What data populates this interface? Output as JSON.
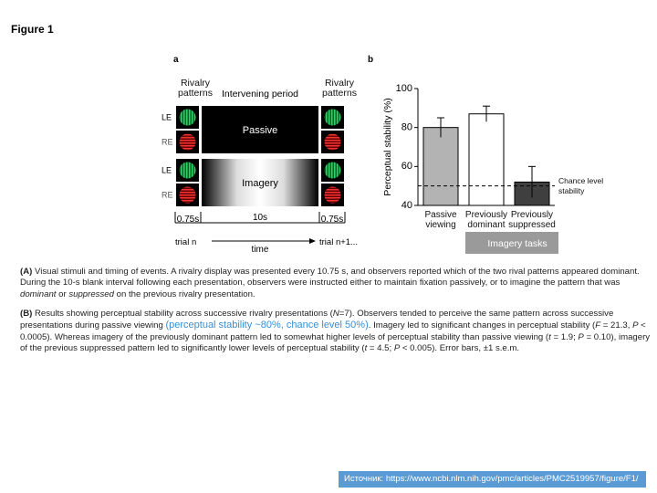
{
  "figure_label": "Figure 1",
  "panel_a": {
    "label": "a",
    "rivalry_left": "Rivalry patterns",
    "intervening": "Intervening period",
    "rivalry_right": "Rivalry patterns",
    "eyes": [
      "LE",
      "RE",
      "LE",
      "RE"
    ],
    "conditions": [
      "Passive",
      "Imagery"
    ],
    "durations": [
      "0.75s",
      "10s",
      "0.75s"
    ],
    "trial_start": "trial n",
    "time": "time",
    "trial_end": "trial n+1..."
  },
  "chart_data": {
    "type": "bar",
    "panel_label": "b",
    "ylabel": "Perceptual stability (%)",
    "categories": [
      "Passive viewing",
      "Previously dominant",
      "Previously suppressed"
    ],
    "series": [
      {
        "values": [
          80,
          87,
          52
        ],
        "errors": [
          5,
          4,
          8
        ],
        "colors": [
          "#b3b3b3",
          "#ffffff",
          "#3f3f3f"
        ]
      }
    ],
    "ylim": [
      40,
      100
    ],
    "yticks": [
      40,
      60,
      80,
      100
    ],
    "grid": false,
    "reference_line": {
      "value": 50,
      "label": "Chance level stability"
    },
    "group_label": "Imagery tasks"
  },
  "caption": {
    "paragraphs": [
      [
        "(A)",
        " Visual stimuli and timing of events. A rivalry display was presented every 10.75 s, and observers reported which of the two rival patterns appeared dominant. During the 10-s blank interval following each presentation, observers were instructed either to maintain fixation passively, or to imagine the pattern that was ",
        "dominant",
        " or ",
        "suppressed",
        " on the previous rivalry presentation."
      ],
      [
        "(B)",
        " Results showing perceptual stability across successive rivalry presentations (",
        "N",
        "=7). Observers tended to perceive the same pattern across successive presentations during passive viewing ",
        "(perceptual stability ~80%, chance level 50%)",
        ". Imagery led to significant changes in perceptual stability (",
        "F",
        " = 21.3, ",
        "P",
        " < 0.0005). Whereas imagery of the previously dominant pattern led to somewhat higher levels of perceptual stability than passive viewing (",
        "t",
        " = 1.9; ",
        "P",
        " = 0.10), imagery of the previous suppressed pattern led to significantly lower levels of perceptual stability (",
        "t",
        " = 4.5; ",
        "P",
        " < 0.005). Error bars, ±1 s.e.m."
      ]
    ]
  },
  "source": "Источник: https://www.ncbi.nlm.nih.gov/pmc/articles/PMC2519957/figure/F1/"
}
